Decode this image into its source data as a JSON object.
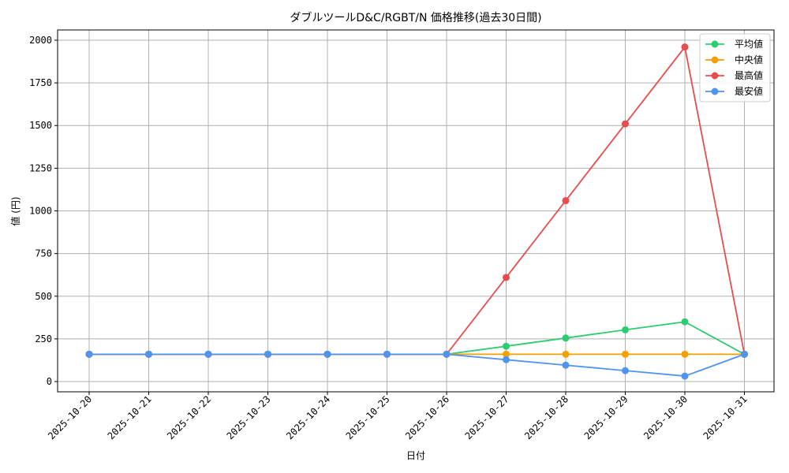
{
  "chart_data": {
    "type": "line",
    "title": "ダブルツールD&C/RGBT/N 価格推移(過去30日間)",
    "xlabel": "日付",
    "ylabel": "値 (円)",
    "ylim": [
      -60,
      2060
    ],
    "yticks": [
      0,
      250,
      500,
      750,
      1000,
      1250,
      1500,
      1750,
      2000
    ],
    "yticks_labels": [
      "0",
      "250",
      "500",
      "750",
      "1000",
      "1250",
      "1500",
      "1750",
      "2000"
    ],
    "grid": true,
    "legend_position": "top-right",
    "x": [
      "2025-10-20",
      "2025-10-21",
      "2025-10-22",
      "2025-10-23",
      "2025-10-24",
      "2025-10-25",
      "2025-10-26",
      "2025-10-27",
      "2025-10-28",
      "2025-10-29",
      "2025-10-30",
      "2025-10-31"
    ],
    "series": [
      {
        "name": "平均値",
        "color": "#2ecc71",
        "values": [
          160,
          160,
          160,
          160,
          160,
          160,
          160,
          207,
          255,
          303,
          350,
          160
        ]
      },
      {
        "name": "中央値",
        "color": "#f5a000",
        "values": [
          160,
          160,
          160,
          160,
          160,
          160,
          160,
          160,
          160,
          160,
          160,
          160
        ]
      },
      {
        "name": "最高値",
        "color": "#e84c4c",
        "values": [
          160,
          160,
          160,
          160,
          160,
          160,
          160,
          610,
          1060,
          1510,
          1960,
          160
        ]
      },
      {
        "name": "最安値",
        "color": "#4f94ef",
        "values": [
          160,
          160,
          160,
          160,
          160,
          160,
          160,
          128,
          96,
          64,
          32,
          160
        ]
      }
    ]
  }
}
